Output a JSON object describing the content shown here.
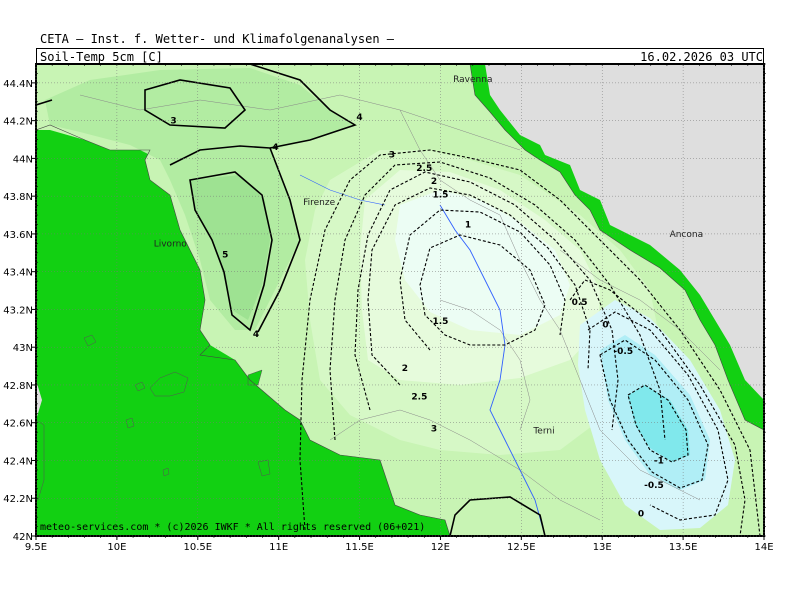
{
  "header": {
    "title": "CETA — Inst. f. Wetter- und Klimafolgenanalysen —",
    "parameter": "Soil-Temp_5cm [C]",
    "valid_time": "16.02.2026 03 UTC"
  },
  "footer": {
    "copyright": "meteo-services.com * (c)2026 IWKF * All rights reserved (06+021)"
  },
  "axes": {
    "lon_ticks": [
      "9.5E",
      "10E",
      "10.5E",
      "11E",
      "11.5E",
      "12E",
      "12.5E",
      "13E",
      "13.5E",
      "14E"
    ],
    "lat_ticks": [
      "42N",
      "42.2N",
      "42.4N",
      "42.6N",
      "42.8N",
      "43N",
      "43.2N",
      "43.4N",
      "43.6N",
      "43.8N",
      "44N",
      "44.2N",
      "44.4N"
    ],
    "lon_range": [
      9.5,
      14.0
    ],
    "lat_range": [
      42.0,
      44.5
    ]
  },
  "cities": [
    {
      "name": "Ravenna",
      "lon": 12.2,
      "lat": 44.42
    },
    {
      "name": "Firenze",
      "lon": 11.25,
      "lat": 43.77
    },
    {
      "name": "Livorno",
      "lon": 10.33,
      "lat": 43.55
    },
    {
      "name": "Ancona",
      "lon": 13.52,
      "lat": 43.6
    },
    {
      "name": "Terni",
      "lon": 12.64,
      "lat": 42.56
    }
  ],
  "contour_labels": [
    {
      "text": "3",
      "lon": 10.35,
      "lat": 44.2
    },
    {
      "text": "4",
      "lon": 11.5,
      "lat": 44.22
    },
    {
      "text": "4",
      "lon": 10.98,
      "lat": 44.06
    },
    {
      "text": "5",
      "lon": 10.67,
      "lat": 43.49
    },
    {
      "text": "4",
      "lon": 10.86,
      "lat": 43.07
    },
    {
      "text": "3",
      "lon": 11.7,
      "lat": 44.02
    },
    {
      "text": "2.5",
      "lon": 11.9,
      "lat": 43.95
    },
    {
      "text": "2",
      "lon": 11.96,
      "lat": 43.88
    },
    {
      "text": "1.5",
      "lon": 12.0,
      "lat": 43.81
    },
    {
      "text": "1",
      "lon": 12.17,
      "lat": 43.65
    },
    {
      "text": "1.5",
      "lon": 12.0,
      "lat": 43.14
    },
    {
      "text": "2",
      "lon": 11.78,
      "lat": 42.89
    },
    {
      "text": "2.5",
      "lon": 11.87,
      "lat": 42.74
    },
    {
      "text": "3",
      "lon": 11.96,
      "lat": 42.57
    },
    {
      "text": "0.5",
      "lon": 12.86,
      "lat": 43.24
    },
    {
      "text": "0",
      "lon": 13.02,
      "lat": 43.12
    },
    {
      "text": "-0.5",
      "lon": 13.13,
      "lat": 42.98
    },
    {
      "text": "-1",
      "lon": 13.35,
      "lat": 42.4
    },
    {
      "text": "-0.5",
      "lon": 13.32,
      "lat": 42.27
    },
    {
      "text": "0",
      "lon": 13.24,
      "lat": 42.12
    }
  ],
  "colors": {
    "sea": "#dedede",
    "coast_band": "#12d012",
    "t_3_4": "#c8f4b4",
    "t_4_5": "#b2eca2",
    "t_above_5": "#9ee292",
    "t_2_3": "#d6f8c6",
    "t_1_2": "#e6fbdc",
    "t_0_1": "#ecfdf4",
    "t_neg0_0": "#d8f6fa",
    "t_neg1": "#b0eef6",
    "t_min": "#80e8ec",
    "river": "#3060ff"
  }
}
